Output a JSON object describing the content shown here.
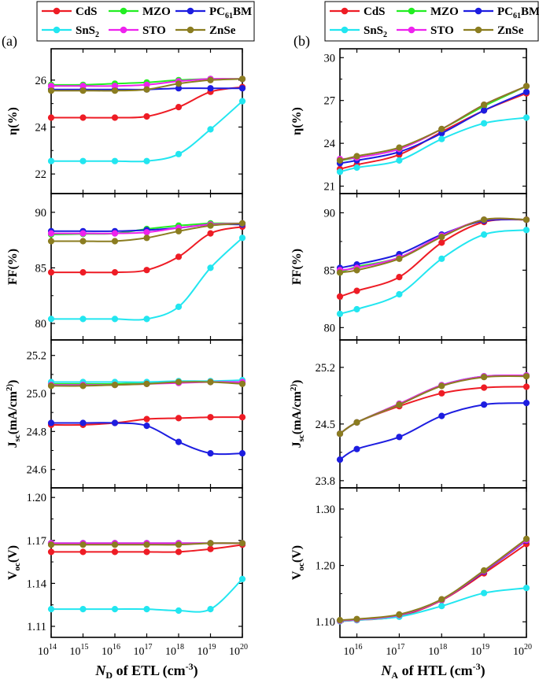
{
  "figure": {
    "panel_labels": [
      "(a)",
      "(b)"
    ],
    "legend": {
      "rows": [
        [
          {
            "key": "CdS",
            "label": "CdS"
          },
          {
            "key": "MZO",
            "label": "MZO"
          },
          {
            "key": "PCBM",
            "label": "PC",
            "sub": "61",
            "tail": "BM"
          }
        ],
        [
          {
            "key": "SnS2",
            "label": "SnS",
            "sub": "2",
            "tail": ""
          },
          {
            "key": "STO",
            "label": "STO"
          },
          {
            "key": "ZnSe",
            "label": "ZnSe"
          }
        ]
      ]
    },
    "colors": {
      "CdS": "#ee1c25",
      "MZO": "#22ee22",
      "PCBM": "#1d1de0",
      "SnS2": "#22e6f0",
      "STO": "#ee22ee",
      "ZnSe": "#8b7d20"
    },
    "left_xlabel": {
      "italic": "N",
      "sub": "D",
      "text": " of ETL (cm",
      "sup": "-3",
      "end": ")"
    },
    "right_xlabel": {
      "italic": "N",
      "sub": "A",
      "text": " of HTL (cm",
      "sup": "-3",
      "end": ")"
    },
    "left_xticks": [
      {
        "b": "10",
        "e": "14"
      },
      {
        "b": "10",
        "e": "15"
      },
      {
        "b": "10",
        "e": "16"
      },
      {
        "b": "10",
        "e": "17"
      },
      {
        "b": "10",
        "e": "18"
      },
      {
        "b": "10",
        "e": "19"
      },
      {
        "b": "10",
        "e": "20"
      }
    ],
    "right_xticks": [
      {
        "b": "10",
        "e": "16"
      },
      {
        "b": "10",
        "e": "17"
      },
      {
        "b": "10",
        "e": "18"
      },
      {
        "b": "10",
        "e": "19"
      },
      {
        "b": "10",
        "e": "20"
      }
    ]
  },
  "chart_data": [
    {
      "type": "line",
      "panel": "a",
      "row": 0,
      "ylabel": "η(%)",
      "x_log10": [
        14,
        15,
        16,
        17,
        18,
        19,
        20
      ],
      "ylim": [
        21.3,
        27.2
      ],
      "yticks": [
        "22",
        "24",
        "26"
      ],
      "ytick_values": [
        22,
        24,
        26
      ],
      "series": [
        {
          "name": "CdS",
          "values": [
            24.4,
            24.4,
            24.4,
            24.45,
            24.85,
            25.5,
            25.7
          ]
        },
        {
          "name": "MZO",
          "values": [
            25.8,
            25.8,
            25.85,
            25.9,
            26.0,
            26.05,
            26.05
          ]
        },
        {
          "name": "PCBM",
          "values": [
            25.6,
            25.6,
            25.6,
            25.6,
            25.65,
            25.65,
            25.65
          ]
        },
        {
          "name": "SnS2",
          "values": [
            22.55,
            22.55,
            22.55,
            22.55,
            22.85,
            23.9,
            25.1
          ]
        },
        {
          "name": "STO",
          "values": [
            25.75,
            25.75,
            25.75,
            25.8,
            25.95,
            26.05,
            26.05
          ]
        },
        {
          "name": "ZnSe",
          "values": [
            25.55,
            25.55,
            25.55,
            25.6,
            25.85,
            26.0,
            26.05
          ]
        }
      ]
    },
    {
      "type": "line",
      "panel": "a",
      "row": 1,
      "ylabel": "FF(%)",
      "x_log10": [
        14,
        15,
        16,
        17,
        18,
        19,
        20
      ],
      "ylim": [
        78.8,
        91.4
      ],
      "yticks": [
        "80",
        "85",
        "90"
      ],
      "ytick_values": [
        80,
        85,
        90
      ],
      "series": [
        {
          "name": "CdS",
          "values": [
            84.6,
            84.6,
            84.6,
            84.8,
            86.0,
            88.1,
            88.7
          ]
        },
        {
          "name": "MZO",
          "values": [
            88.0,
            88.05,
            88.1,
            88.5,
            88.8,
            89.0,
            89.0
          ]
        },
        {
          "name": "PCBM",
          "values": [
            88.3,
            88.3,
            88.3,
            88.4,
            88.6,
            88.9,
            88.9
          ]
        },
        {
          "name": "SnS2",
          "values": [
            80.4,
            80.4,
            80.4,
            80.4,
            81.5,
            85.0,
            87.7
          ]
        },
        {
          "name": "STO",
          "values": [
            88.1,
            88.1,
            88.1,
            88.2,
            88.6,
            88.9,
            89.0
          ]
        },
        {
          "name": "ZnSe",
          "values": [
            87.4,
            87.4,
            87.4,
            87.7,
            88.3,
            88.8,
            89.0
          ]
        }
      ]
    },
    {
      "type": "line",
      "panel": "a",
      "row": 2,
      "ylabel": "J_sc(mA/cm^2)",
      "x_log10": [
        14,
        15,
        16,
        17,
        18,
        19,
        20
      ],
      "ylim": [
        24.52,
        25.265
      ],
      "yticks": [
        "24.6",
        "24.8",
        "25.0",
        "25.2"
      ],
      "ytick_values": [
        24.6,
        24.8,
        25.0,
        25.2
      ],
      "series": [
        {
          "name": "CdS",
          "values": [
            24.835,
            24.835,
            24.845,
            24.865,
            24.87,
            24.875,
            24.875
          ]
        },
        {
          "name": "MZO",
          "values": [
            25.05,
            25.05,
            25.05,
            25.055,
            25.06,
            25.06,
            25.06
          ]
        },
        {
          "name": "PCBM",
          "values": [
            24.845,
            24.845,
            24.845,
            24.83,
            24.745,
            24.685,
            24.685
          ]
        },
        {
          "name": "SnS2",
          "values": [
            25.06,
            25.06,
            25.06,
            25.06,
            25.065,
            25.065,
            25.07
          ]
        },
        {
          "name": "STO",
          "values": [
            25.045,
            25.045,
            25.045,
            25.05,
            25.055,
            25.06,
            25.06
          ]
        },
        {
          "name": "ZnSe",
          "values": [
            25.04,
            25.04,
            25.045,
            25.05,
            25.06,
            25.06,
            25.05
          ]
        }
      ]
    },
    {
      "type": "line",
      "panel": "a",
      "row": 3,
      "ylabel": "V_oc(V)",
      "x_log10": [
        14,
        15,
        16,
        17,
        18,
        19,
        20
      ],
      "ylim": [
        1.1045,
        1.2045
      ],
      "yticks": [
        "1.11",
        "1.14",
        "1.17",
        "1.20"
      ],
      "ytick_values": [
        1.11,
        1.14,
        1.17,
        1.2
      ],
      "series": [
        {
          "name": "CdS",
          "values": [
            1.162,
            1.162,
            1.162,
            1.162,
            1.162,
            1.164,
            1.167
          ]
        },
        {
          "name": "MZO",
          "values": [
            1.168,
            1.168,
            1.168,
            1.168,
            1.168,
            1.168,
            1.168
          ]
        },
        {
          "name": "PCBM",
          "values": [
            1.168,
            1.168,
            1.168,
            1.168,
            1.168,
            1.168,
            1.168
          ]
        },
        {
          "name": "SnS2",
          "values": [
            1.122,
            1.122,
            1.122,
            1.122,
            1.121,
            1.122,
            1.143
          ]
        },
        {
          "name": "STO",
          "values": [
            1.168,
            1.168,
            1.168,
            1.168,
            1.168,
            1.168,
            1.168
          ]
        },
        {
          "name": "ZnSe",
          "values": [
            1.167,
            1.167,
            1.167,
            1.167,
            1.167,
            1.168,
            1.168
          ]
        }
      ]
    },
    {
      "type": "line",
      "panel": "b",
      "row": 0,
      "ylabel": "η(%)",
      "x_log10": [
        15.6,
        16,
        17,
        18,
        19,
        20
      ],
      "ylim": [
        20.7,
        30.4
      ],
      "yticks": [
        "21",
        "24",
        "27",
        "30"
      ],
      "ytick_values": [
        21,
        24,
        27,
        30
      ],
      "series": [
        {
          "name": "CdS",
          "values": [
            22.2,
            22.5,
            23.2,
            24.8,
            26.3,
            27.5
          ]
        },
        {
          "name": "MZO",
          "values": [
            22.8,
            23.0,
            23.6,
            25.0,
            26.6,
            28.0
          ]
        },
        {
          "name": "PCBM",
          "values": [
            22.6,
            22.8,
            23.4,
            24.7,
            26.3,
            27.6
          ]
        },
        {
          "name": "SnS2",
          "values": [
            22.0,
            22.3,
            22.8,
            24.3,
            25.4,
            25.8
          ]
        },
        {
          "name": "STO",
          "values": [
            22.9,
            23.0,
            23.6,
            25.0,
            26.7,
            28.0
          ]
        },
        {
          "name": "ZnSe",
          "values": [
            22.8,
            23.1,
            23.7,
            25.0,
            26.7,
            28.0
          ]
        }
      ]
    },
    {
      "type": "line",
      "panel": "b",
      "row": 1,
      "ylabel": "FF(%)",
      "x_log10": [
        15.6,
        16,
        17,
        18,
        19,
        20
      ],
      "ylim": [
        79.2,
        91.4
      ],
      "yticks": [
        "80",
        "85",
        "90"
      ],
      "ytick_values": [
        80,
        85,
        90
      ],
      "series": [
        {
          "name": "CdS",
          "values": [
            82.7,
            83.2,
            84.4,
            87.4,
            89.2,
            89.4
          ]
        },
        {
          "name": "MZO",
          "values": [
            84.8,
            85.3,
            86.1,
            88.0,
            89.4,
            89.4
          ]
        },
        {
          "name": "PCBM",
          "values": [
            85.2,
            85.5,
            86.4,
            88.1,
            89.3,
            89.4
          ]
        },
        {
          "name": "SnS2",
          "values": [
            81.2,
            81.6,
            82.9,
            86.0,
            88.1,
            88.5
          ]
        },
        {
          "name": "STO",
          "values": [
            85.0,
            85.2,
            86.1,
            88.0,
            89.4,
            89.4
          ]
        },
        {
          "name": "ZnSe",
          "values": [
            84.8,
            85.0,
            86.0,
            87.9,
            89.4,
            89.4
          ]
        }
      ]
    },
    {
      "type": "line",
      "panel": "b",
      "row": 2,
      "ylabel": "J_sc(mA/cm^2)",
      "x_log10": [
        15.6,
        16,
        17,
        18,
        19,
        20
      ],
      "ylim": [
        23.75,
        25.5
      ],
      "yticks": [
        "23.8",
        "24.5",
        "25.2"
      ],
      "ytick_values": [
        23.8,
        24.5,
        25.2
      ],
      "series": [
        {
          "name": "CdS",
          "values": [
            24.38,
            24.52,
            24.72,
            24.88,
            24.95,
            24.96
          ]
        },
        {
          "name": "MZO",
          "values": [
            24.38,
            24.52,
            24.75,
            24.98,
            25.09,
            25.1
          ]
        },
        {
          "name": "PCBM",
          "values": [
            24.06,
            24.19,
            24.34,
            24.6,
            24.74,
            24.76
          ]
        },
        {
          "name": "SnS2",
          "values": [
            24.38,
            24.52,
            24.74,
            24.98,
            25.09,
            25.1
          ]
        },
        {
          "name": "STO",
          "values": [
            24.38,
            24.52,
            24.75,
            24.98,
            25.09,
            25.1
          ]
        },
        {
          "name": "ZnSe",
          "values": [
            24.38,
            24.52,
            24.74,
            24.97,
            25.08,
            25.09
          ]
        }
      ]
    },
    {
      "type": "line",
      "panel": "b",
      "row": 3,
      "ylabel": "V_oc(V)",
      "x_log10": [
        15.6,
        16,
        17,
        18,
        19,
        20
      ],
      "ylim": [
        1.078,
        1.332
      ],
      "yticks": [
        "1.10",
        "1.20",
        "1.30"
      ],
      "ytick_values": [
        1.1,
        1.2,
        1.3
      ],
      "series": [
        {
          "name": "CdS",
          "values": [
            1.101,
            1.103,
            1.11,
            1.138,
            1.186,
            1.238
          ]
        },
        {
          "name": "MZO",
          "values": [
            1.102,
            1.104,
            1.112,
            1.139,
            1.19,
            1.245
          ]
        },
        {
          "name": "PCBM",
          "values": [
            1.102,
            1.104,
            1.112,
            1.139,
            1.189,
            1.244
          ]
        },
        {
          "name": "SnS2",
          "values": [
            1.101,
            1.103,
            1.109,
            1.128,
            1.151,
            1.16
          ]
        },
        {
          "name": "STO",
          "values": [
            1.102,
            1.104,
            1.112,
            1.139,
            1.19,
            1.245
          ]
        },
        {
          "name": "ZnSe",
          "values": [
            1.103,
            1.105,
            1.113,
            1.14,
            1.191,
            1.247
          ]
        }
      ]
    }
  ]
}
